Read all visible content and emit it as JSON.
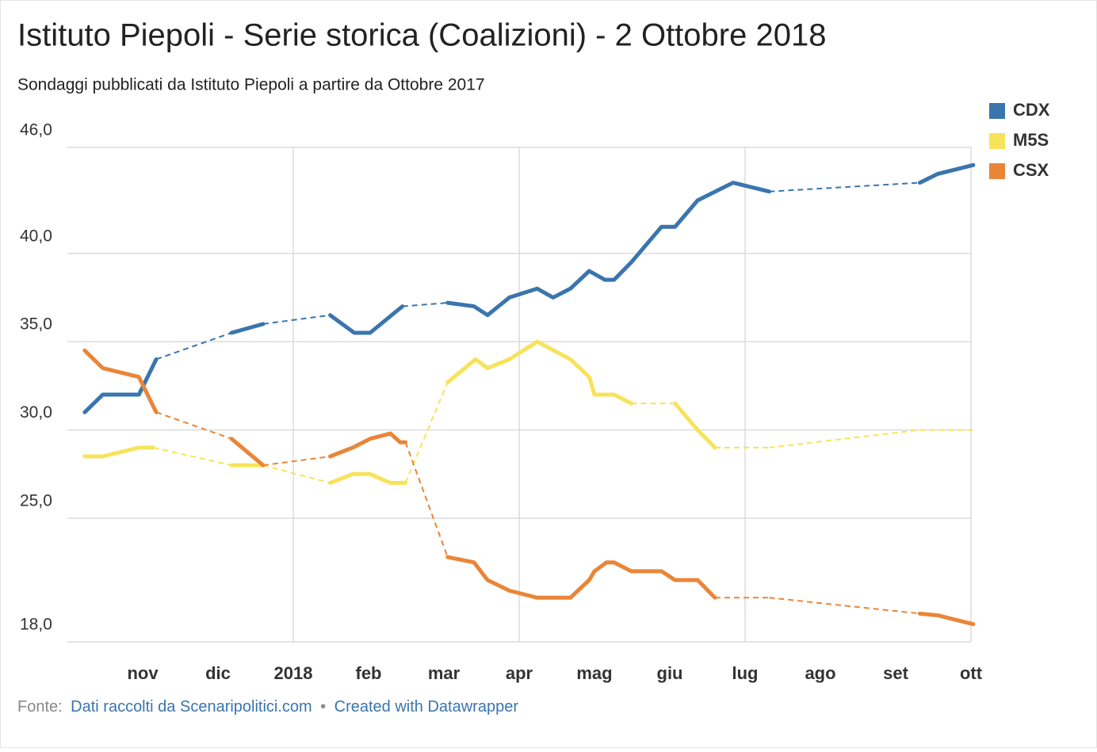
{
  "chart_data": {
    "type": "line",
    "title": "Istituto Piepoli - Serie storica (Coalizioni) - 2 Ottobre 2018",
    "subtitle": "Sondaggi pubblicati da Istituto Piepoli a partire da Ottobre 2017",
    "xlim": [
      10,
      22
    ],
    "xticks": [
      {
        "value": 11,
        "label": "nov"
      },
      {
        "value": 12,
        "label": "dic"
      },
      {
        "value": 13,
        "label": "2018"
      },
      {
        "value": 14,
        "label": "feb"
      },
      {
        "value": 15,
        "label": "mar"
      },
      {
        "value": 16,
        "label": "apr"
      },
      {
        "value": 17,
        "label": "mag"
      },
      {
        "value": 18,
        "label": "giu"
      },
      {
        "value": 19,
        "label": "lug"
      },
      {
        "value": 20,
        "label": "ago"
      },
      {
        "value": 21,
        "label": "set"
      },
      {
        "value": 22,
        "label": "ott"
      }
    ],
    "xgrid_every": 3,
    "ylim": [
      18,
      46
    ],
    "yticks": [
      {
        "value": 46,
        "label": "46,0"
      },
      {
        "value": 40,
        "label": "40,0"
      },
      {
        "value": 35,
        "label": "35,0"
      },
      {
        "value": 30,
        "label": "30,0"
      },
      {
        "value": 25,
        "label": "25,0"
      },
      {
        "value": 18,
        "label": "18,0"
      }
    ],
    "grid": true,
    "legend": "top-right",
    "series": [
      {
        "name": "CDX",
        "color": "#3a75ae",
        "x": [
          10.23,
          10.47,
          10.95,
          11.18,
          12.18,
          12.6,
          13.49,
          13.81,
          14.02,
          14.45,
          15.05,
          15.4,
          15.58,
          15.87,
          16.24,
          16.45,
          16.68,
          16.93,
          17.14,
          17.26,
          17.49,
          17.89,
          18.07,
          18.37,
          18.84,
          19.32,
          21.32,
          21.56,
          22.03
        ],
        "values": [
          31.0,
          32.0,
          32.0,
          34.0,
          35.5,
          36.0,
          36.5,
          35.5,
          35.5,
          37.0,
          37.2,
          37.0,
          36.5,
          37.5,
          38.0,
          37.5,
          38.0,
          39.0,
          38.5,
          38.5,
          39.5,
          41.5,
          41.5,
          43.0,
          44.0,
          43.5,
          44.0,
          44.5,
          45.0
        ]
      },
      {
        "name": "M5S",
        "color": "#f7e35a",
        "x": [
          10.23,
          10.47,
          10.95,
          11.14,
          12.18,
          12.6,
          13.49,
          13.79,
          14.02,
          14.29,
          14.49,
          15.05,
          15.42,
          15.58,
          15.87,
          16.24,
          16.68,
          16.93,
          17.0,
          17.26,
          17.49,
          18.07,
          18.37,
          18.6,
          19.32,
          21.32,
          22.03
        ],
        "values": [
          28.5,
          28.5,
          29.0,
          29.0,
          28.0,
          28.0,
          27.0,
          27.5,
          27.5,
          27.0,
          27.0,
          32.7,
          34.0,
          33.5,
          34.0,
          35.0,
          34.0,
          33.0,
          32.0,
          32.0,
          31.5,
          31.5,
          30.0,
          29.0,
          29.0,
          30.0,
          30.0
        ]
      },
      {
        "name": "CSX",
        "color": "#ea8538",
        "x": [
          10.23,
          10.47,
          10.95,
          11.18,
          12.18,
          12.6,
          13.49,
          13.79,
          14.02,
          14.29,
          14.42,
          14.49,
          15.05,
          15.4,
          15.58,
          15.87,
          16.24,
          16.68,
          16.93,
          17.0,
          17.16,
          17.26,
          17.49,
          17.89,
          18.07,
          18.37,
          18.6,
          19.32,
          21.32,
          21.56,
          22.03
        ],
        "values": [
          34.5,
          33.5,
          33.0,
          31.0,
          29.5,
          28.0,
          28.5,
          29.0,
          29.5,
          29.8,
          29.3,
          29.3,
          22.8,
          22.5,
          21.5,
          20.9,
          20.5,
          20.5,
          21.5,
          22.0,
          22.5,
          22.5,
          22.0,
          22.0,
          21.5,
          21.5,
          20.5,
          20.5,
          19.6,
          19.5,
          19.0
        ]
      }
    ],
    "source": {
      "label": "Fonte:",
      "link": "Dati raccolti da Scenaripolitici.com",
      "separator": "•",
      "credit": "Created with Datawrapper"
    }
  }
}
